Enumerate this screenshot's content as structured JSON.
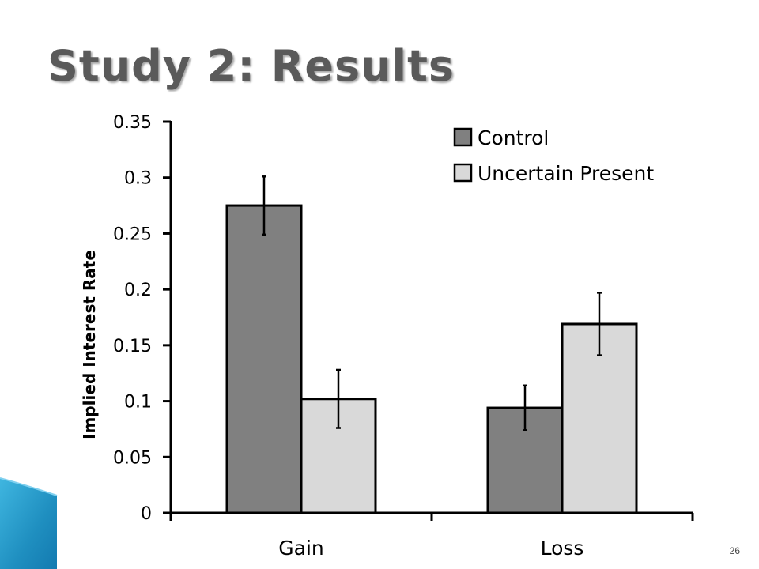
{
  "slide": {
    "title": "Study 2: Results",
    "slide_number": "26"
  },
  "colors": {
    "control": "#808080",
    "uncertain_present": "#d9d9d9",
    "title": "#5a5a5a",
    "accent": "#1f8fc0"
  },
  "chart_data": {
    "type": "bar",
    "title": "",
    "xlabel": "",
    "ylabel": "Implied Interest Rate",
    "categories": [
      "Gain",
      "Loss"
    ],
    "ylim": [
      0,
      0.35
    ],
    "yticks": [
      0,
      0.05,
      0.1,
      0.15,
      0.2,
      0.25,
      0.3,
      0.35
    ],
    "ytick_labels": [
      "0",
      "0.05",
      "0.1",
      "0.15",
      "0.2",
      "0.25",
      "0.3",
      "0.35"
    ],
    "series": [
      {
        "name": "Control",
        "values": [
          0.275,
          0.094
        ],
        "error": [
          0.026,
          0.02
        ]
      },
      {
        "name": "Uncertain Present",
        "values": [
          0.102,
          0.169
        ],
        "error": [
          0.026,
          0.028
        ]
      }
    ],
    "grid": false,
    "legend_position": "top-right",
    "error_bars": true
  }
}
